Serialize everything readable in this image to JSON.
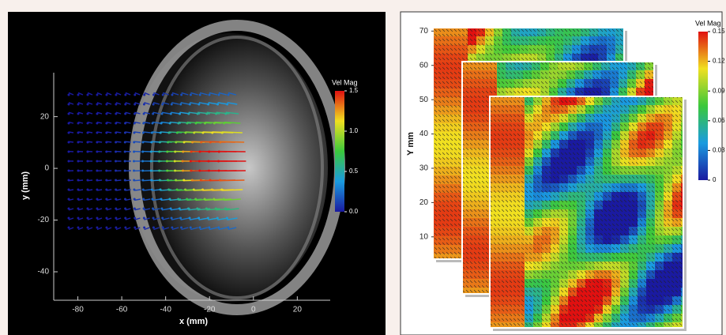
{
  "chart_data": [
    {
      "type": "vector",
      "xlabel": "x (mm)",
      "ylabel": "y (mm)",
      "xlim": [
        -91,
        35
      ],
      "xticks": [
        -80,
        -60,
        -40,
        -20,
        0,
        20
      ],
      "ylim": [
        -51,
        37
      ],
      "yticks": [
        -40,
        -20,
        0,
        20
      ],
      "colorbar": {
        "title": "Vel Mag",
        "lim": [
          0,
          1.5
        ],
        "ticks": [
          {
            "value": 0,
            "label": "0.0"
          },
          0.5,
          {
            "value": 1,
            "label": "1.0"
          },
          1.5
        ]
      }
    },
    {
      "type": "vector",
      "ylabel": "Y mm",
      "ylim": [
        3.5,
        71
      ],
      "yticks": [
        10,
        20,
        30,
        40,
        50,
        60,
        70
      ],
      "colorbar": {
        "title": "Vel Mag",
        "lim": [
          0,
          0.15
        ],
        "ticks": [
          0,
          0.03,
          0.06,
          0.09,
          0.12,
          0.15
        ]
      }
    }
  ]
}
